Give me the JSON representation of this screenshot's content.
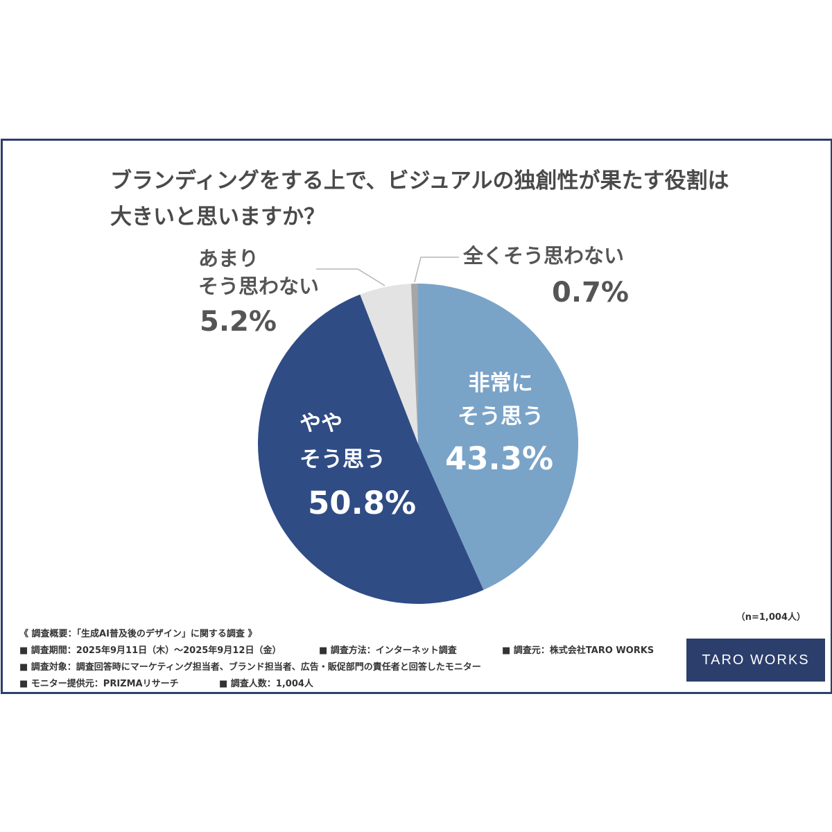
{
  "title": {
    "line1": "ブランディングをする上で、ビジュアルの独創性が果たす役割は",
    "line2": "大きいと思いますか？"
  },
  "colors": {
    "frame": "#2c3e6b",
    "very_agree": "#7aa3c8",
    "somewhat_agree": "#2f4c85",
    "not_much": "#e3e3e3",
    "not_at_all": "#a6a6a6"
  },
  "chart_data": {
    "type": "pie",
    "slices": [
      {
        "label_lines": [
          "非常に",
          "そう思う"
        ],
        "pct_text": "43.3%",
        "value": 43.3,
        "color": "#7aa3c8"
      },
      {
        "label_lines": [
          "やや",
          "そう思う"
        ],
        "pct_text": "50.8%",
        "value": 50.8,
        "color": "#2f4c85"
      },
      {
        "label_lines": [
          "あまり",
          "そう思わない"
        ],
        "pct_text": "5.2%",
        "value": 5.2,
        "color": "#e3e3e3"
      },
      {
        "label_lines": [
          "全くそう思わない"
        ],
        "pct_text": "0.7%",
        "value": 0.7,
        "color": "#a6a6a6"
      }
    ]
  },
  "sample_size": "（n=1,004人）",
  "notes": {
    "heading": "《 調査概要：「生成AI普及後のデザイン」に関する調査 》",
    "period": "■ 調査期間：2025年9月11日（木）～2025年9月12日（金）",
    "method": "■ 調査方法：インターネット調査",
    "organizer": "■ 調査元：株式会社TARO WORKS",
    "target": "■ 調査対象：調査回答時にマーケティング担当者、ブランド担当者、広告・販促部門の責任者と回答したモニター",
    "provider": "■ モニター提供元：PRIZMAリサーチ",
    "count": "■ 調査人数：1,004人"
  },
  "logo": "TARO WORKS"
}
